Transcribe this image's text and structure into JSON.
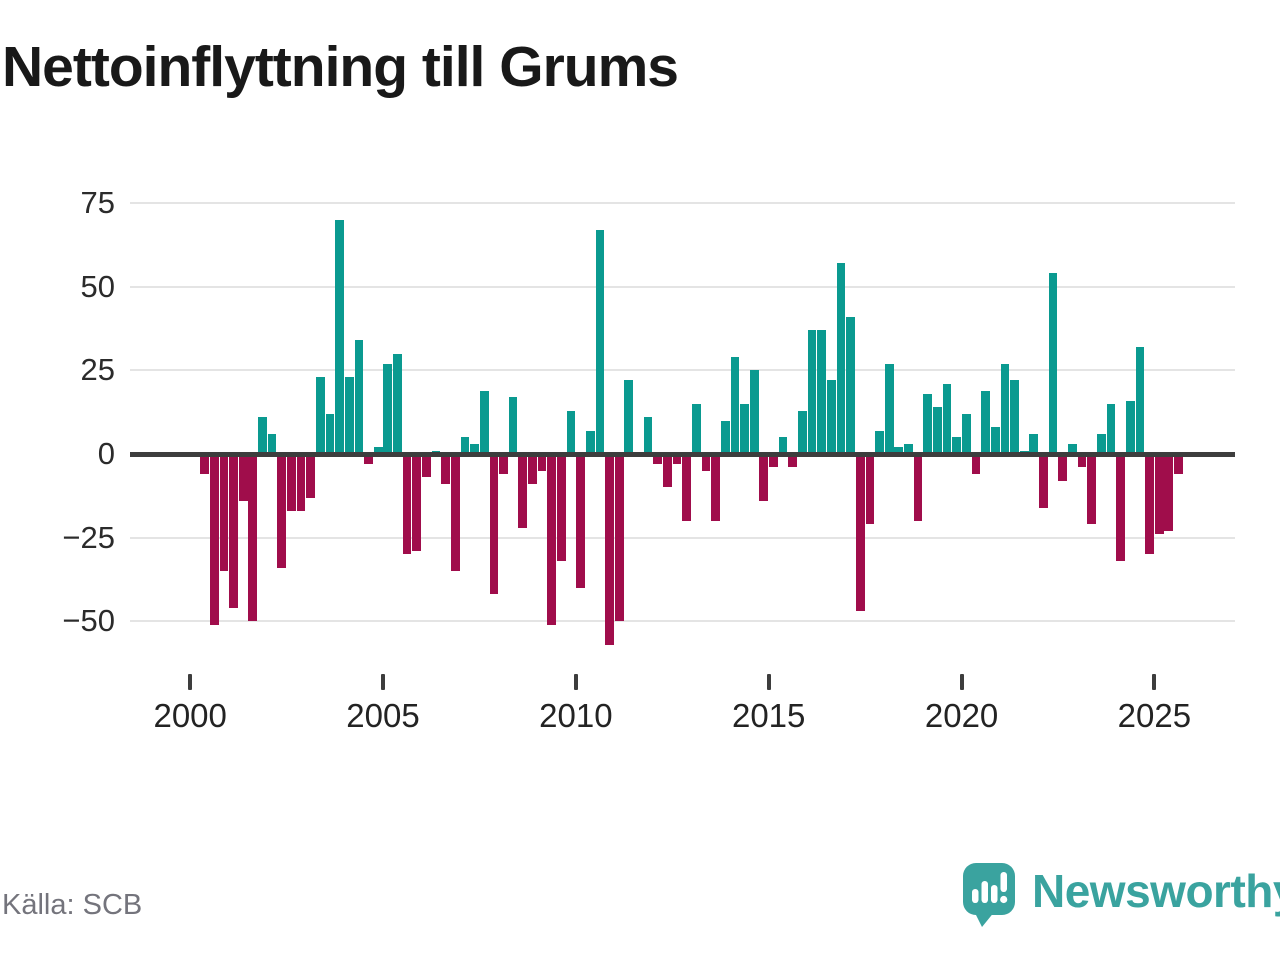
{
  "title": "Nettoinflyttning till Grums",
  "source": "Källa: SCB",
  "branding": {
    "name": "Newsworthy"
  },
  "colors": {
    "positive": "#0a9a90",
    "negative": "#a00d4b",
    "grid": "#e4e4e4",
    "axis": "#3d3d3d",
    "brand": "#3aa39f"
  },
  "axes": {
    "ytick_labels": [
      "75",
      "50",
      "25",
      "0",
      "−25",
      "−50"
    ],
    "xtick_labels": [
      "2000",
      "2005",
      "2010",
      "2015",
      "2020",
      "2025"
    ]
  },
  "chart_data": {
    "type": "bar",
    "title": "Nettoinflyttning till Grums",
    "xlabel": "",
    "ylabel": "",
    "grid": true,
    "ylim": [
      -62,
      80
    ],
    "yticks": [
      75,
      50,
      25,
      0,
      -25,
      -50
    ],
    "xticks": [
      2000,
      2005,
      2010,
      2015,
      2020,
      2025
    ],
    "legend": "none",
    "series_note": "quarterly net migration, persons; positive bars teal, negative bars dark red",
    "quarters": [
      "2000Q2",
      "2000Q3",
      "2000Q4",
      "2001Q1",
      "2001Q2",
      "2001Q3",
      "2001Q4",
      "2002Q1",
      "2002Q2",
      "2002Q3",
      "2002Q4",
      "2003Q1",
      "2003Q2",
      "2003Q3",
      "2003Q4",
      "2004Q1",
      "2004Q2",
      "2004Q3",
      "2004Q4",
      "2005Q1",
      "2005Q2",
      "2005Q3",
      "2005Q4",
      "2006Q1",
      "2006Q2",
      "2006Q3",
      "2006Q4",
      "2007Q1",
      "2007Q2",
      "2007Q3",
      "2007Q4",
      "2008Q1",
      "2008Q2",
      "2008Q3",
      "2008Q4",
      "2009Q1",
      "2009Q2",
      "2009Q3",
      "2009Q4",
      "2010Q1",
      "2010Q2",
      "2010Q3",
      "2010Q4",
      "2011Q1",
      "2011Q2",
      "2011Q3",
      "2011Q4",
      "2012Q1",
      "2012Q2",
      "2012Q3",
      "2012Q4",
      "2013Q1",
      "2013Q2",
      "2013Q3",
      "2013Q4",
      "2014Q1",
      "2014Q2",
      "2014Q3",
      "2014Q4",
      "2015Q1",
      "2015Q2",
      "2015Q3",
      "2015Q4",
      "2016Q1",
      "2016Q2",
      "2016Q3",
      "2016Q4",
      "2017Q1",
      "2017Q2",
      "2017Q3",
      "2017Q4",
      "2018Q1",
      "2018Q2",
      "2018Q3",
      "2018Q4",
      "2019Q1",
      "2019Q2",
      "2019Q3",
      "2019Q4",
      "2020Q1",
      "2020Q2",
      "2020Q3",
      "2020Q4",
      "2021Q1",
      "2021Q2",
      "2021Q3",
      "2021Q4",
      "2022Q1",
      "2022Q2",
      "2022Q3",
      "2022Q4",
      "2023Q1",
      "2023Q2",
      "2023Q3",
      "2023Q4",
      "2024Q1",
      "2024Q2",
      "2024Q3",
      "2024Q4",
      "2025Q1",
      "2025Q2",
      "2025Q3"
    ],
    "values": [
      -6,
      -51,
      -35,
      -46,
      -14,
      -50,
      11,
      6,
      -34,
      -17,
      -17,
      -13,
      23,
      12,
      70,
      23,
      34,
      -3,
      2,
      27,
      30,
      -30,
      -29,
      -7,
      1,
      -9,
      -35,
      5,
      3,
      19,
      -42,
      -6,
      17,
      -22,
      -9,
      -5,
      -51,
      -32,
      13,
      -40,
      7,
      67,
      -57,
      -50,
      22,
      0,
      11,
      -3,
      -10,
      -3,
      -20,
      15,
      -5,
      -20,
      10,
      29,
      15,
      25,
      -14,
      -4,
      5,
      -4,
      13,
      37,
      37,
      22,
      57,
      41,
      -47,
      -21,
      7,
      27,
      2,
      3,
      -20,
      18,
      14,
      21,
      5,
      12,
      -6,
      19,
      8,
      27,
      22,
      1,
      6,
      -16,
      54,
      -8,
      3,
      -4,
      -21,
      6,
      15,
      -32,
      16,
      32,
      -30,
      -24,
      -23,
      -6
    ]
  }
}
